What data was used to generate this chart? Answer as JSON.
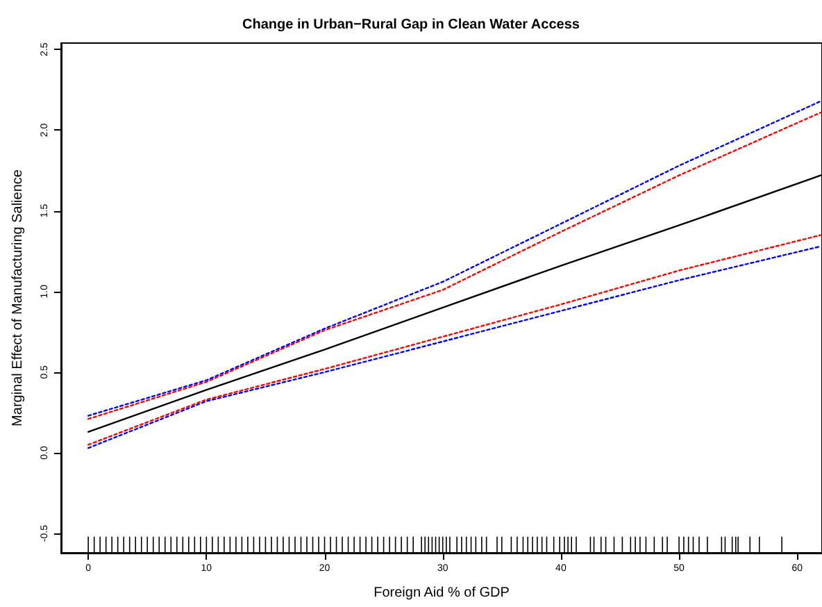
{
  "chart_data": {
    "type": "line",
    "title": "Change in Urban−Rural Gap in Clean Water Access",
    "xlabel": "Foreign Aid % of GDP",
    "ylabel": "Marginal Effect of Manufacturing Salience",
    "xlim": [
      -2.3,
      62.1
    ],
    "ylim": [
      -0.62,
      2.54
    ],
    "xticks": [
      0,
      10,
      20,
      30,
      40,
      50,
      60
    ],
    "yticks": [
      -0.5,
      {
        "value": 0,
        "label": "0.0"
      },
      0.5,
      {
        "value": 1,
        "label": "1.0"
      },
      1.5,
      {
        "value": 2,
        "label": "2.0"
      },
      2.5
    ],
    "grid": false,
    "series": [
      {
        "color": "#000000",
        "line_style": "solid",
        "x": [
          0,
          10,
          20,
          30,
          40,
          50,
          62
        ],
        "values": [
          0.13,
          0.39,
          0.64,
          0.9,
          1.16,
          1.41,
          1.72
        ]
      },
      {
        "color": "#0000ff",
        "line_style": "dotted",
        "x": [
          0,
          10,
          20,
          30,
          40,
          50,
          62
        ],
        "values": [
          0.23,
          0.45,
          0.77,
          1.06,
          1.42,
          1.78,
          2.18
        ]
      },
      {
        "color": "#ff0000",
        "line_style": "dotted",
        "x": [
          0,
          10,
          20,
          30,
          40,
          50,
          62
        ],
        "values": [
          0.21,
          0.44,
          0.76,
          1.01,
          1.37,
          1.72,
          2.11
        ]
      },
      {
        "color": "#ff0000",
        "line_style": "dotted",
        "x": [
          0,
          10,
          20,
          30,
          40,
          50,
          62
        ],
        "values": [
          0.05,
          0.33,
          0.52,
          0.72,
          0.92,
          1.13,
          1.35
        ]
      },
      {
        "color": "#0000ff",
        "line_style": "dotted",
        "x": [
          0,
          10,
          20,
          30,
          40,
          50,
          62
        ],
        "values": [
          0.03,
          0.32,
          0.5,
          0.69,
          0.88,
          1.07,
          1.28
        ]
      },
      {
        "type": "bar",
        "color": "#000000",
        "base": [
          -0.62,
          -0.62,
          -0.62,
          -0.62,
          -0.62,
          -0.62,
          -0.62,
          -0.62,
          -0.62,
          -0.62,
          -0.62,
          -0.62,
          -0.62,
          -0.62,
          -0.62,
          -0.62,
          -0.62,
          -0.62,
          -0.62,
          -0.62,
          -0.62,
          -0.62,
          -0.62,
          -0.62,
          -0.62,
          -0.62,
          -0.62,
          -0.62,
          -0.62,
          -0.62,
          -0.62,
          -0.62,
          -0.62,
          -0.62,
          -0.62,
          -0.62,
          -0.62,
          -0.62,
          -0.62,
          -0.62,
          -0.62,
          -0.62,
          -0.62,
          -0.62,
          -0.62,
          -0.62,
          -0.62,
          -0.62,
          -0.62,
          -0.62,
          -0.62,
          -0.62,
          -0.62,
          -0.62,
          -0.62,
          -0.62,
          -0.62,
          -0.62,
          -0.62,
          -0.62,
          -0.62,
          -0.62,
          -0.62,
          -0.62,
          -0.62,
          -0.62,
          -0.62,
          -0.62,
          -0.62,
          -0.62,
          -0.62,
          -0.62,
          -0.62,
          -0.62,
          -0.62,
          -0.62,
          -0.62,
          -0.62,
          -0.62,
          -0.62,
          -0.62,
          -0.62,
          -0.62,
          -0.62,
          -0.62,
          -0.62,
          -0.62,
          -0.62,
          -0.62,
          -0.62,
          -0.62,
          -0.62,
          -0.62,
          -0.62,
          -0.62,
          -0.62,
          -0.62,
          -0.62,
          -0.62,
          -0.62,
          -0.62,
          -0.62,
          -0.62,
          -0.62,
          -0.62,
          -0.62,
          -0.62,
          -0.62,
          -0.62,
          -0.62,
          -0.62,
          -0.62,
          -0.62,
          -0.62,
          -0.62
        ],
        "x": [
          0,
          0.5,
          1,
          1.5,
          2,
          2.5,
          3,
          3.5,
          4,
          4.5,
          5,
          5.5,
          6,
          6.5,
          7,
          7.5,
          8,
          8.5,
          9,
          9.5,
          10,
          10.5,
          11,
          11.5,
          12,
          12.5,
          13,
          13.5,
          14,
          14.5,
          15,
          15.5,
          16,
          16.5,
          17,
          17.5,
          18,
          18.5,
          19,
          19.5,
          20,
          20.5,
          21,
          21.5,
          22,
          22.5,
          23,
          23.5,
          24,
          24.5,
          25,
          25.5,
          26,
          26.5,
          27,
          27.5,
          28.2,
          28.5,
          28.8,
          29.1,
          29.4,
          29.7,
          30,
          30.3,
          30.6,
          31.2,
          31.6,
          32,
          32.4,
          32.8,
          33.3,
          33.7,
          34.6,
          35,
          35.8,
          36.3,
          36.8,
          37.2,
          37.6,
          38,
          38.4,
          38.8,
          39.4,
          39.9,
          40.3,
          40.6,
          40.9,
          41.3,
          42.5,
          42.8,
          43.4,
          43.8,
          44.5,
          45.2,
          45.9,
          46.3,
          46.7,
          47.2,
          47.9,
          48.6,
          49,
          50,
          50.4,
          50.8,
          51.2,
          51.7,
          52.4,
          53.6,
          53.9,
          54.5,
          54.8,
          55,
          56,
          56.8,
          58.7
        ],
        "values": [
          0.1,
          0.1,
          0.1,
          0.1,
          0.1,
          0.1,
          0.1,
          0.1,
          0.1,
          0.1,
          0.1,
          0.1,
          0.1,
          0.1,
          0.1,
          0.1,
          0.1,
          0.1,
          0.1,
          0.1,
          0.1,
          0.1,
          0.1,
          0.1,
          0.1,
          0.1,
          0.1,
          0.1,
          0.1,
          0.1,
          0.1,
          0.1,
          0.1,
          0.1,
          0.1,
          0.1,
          0.1,
          0.1,
          0.1,
          0.1,
          0.1,
          0.1,
          0.1,
          0.1,
          0.1,
          0.1,
          0.1,
          0.1,
          0.1,
          0.1,
          0.1,
          0.1,
          0.1,
          0.1,
          0.1,
          0.1,
          0.1,
          0.1,
          0.1,
          0.1,
          0.1,
          0.1,
          0.1,
          0.1,
          0.1,
          0.1,
          0.1,
          0.1,
          0.1,
          0.1,
          0.1,
          0.1,
          0.1,
          0.1,
          0.1,
          0.1,
          0.1,
          0.1,
          0.1,
          0.1,
          0.1,
          0.1,
          0.1,
          0.1,
          0.1,
          0.1,
          0.1,
          0.1,
          0.1,
          0.1,
          0.1,
          0.1,
          0.1,
          0.1,
          0.1,
          0.1,
          0.1,
          0.1,
          0.1,
          0.1,
          0.1,
          0.1,
          0.1,
          0.1,
          0.1,
          0.1,
          0.1,
          0.1,
          0.1,
          0.1,
          0.1,
          0.1,
          0.1,
          0.1,
          0.1
        ]
      }
    ]
  }
}
